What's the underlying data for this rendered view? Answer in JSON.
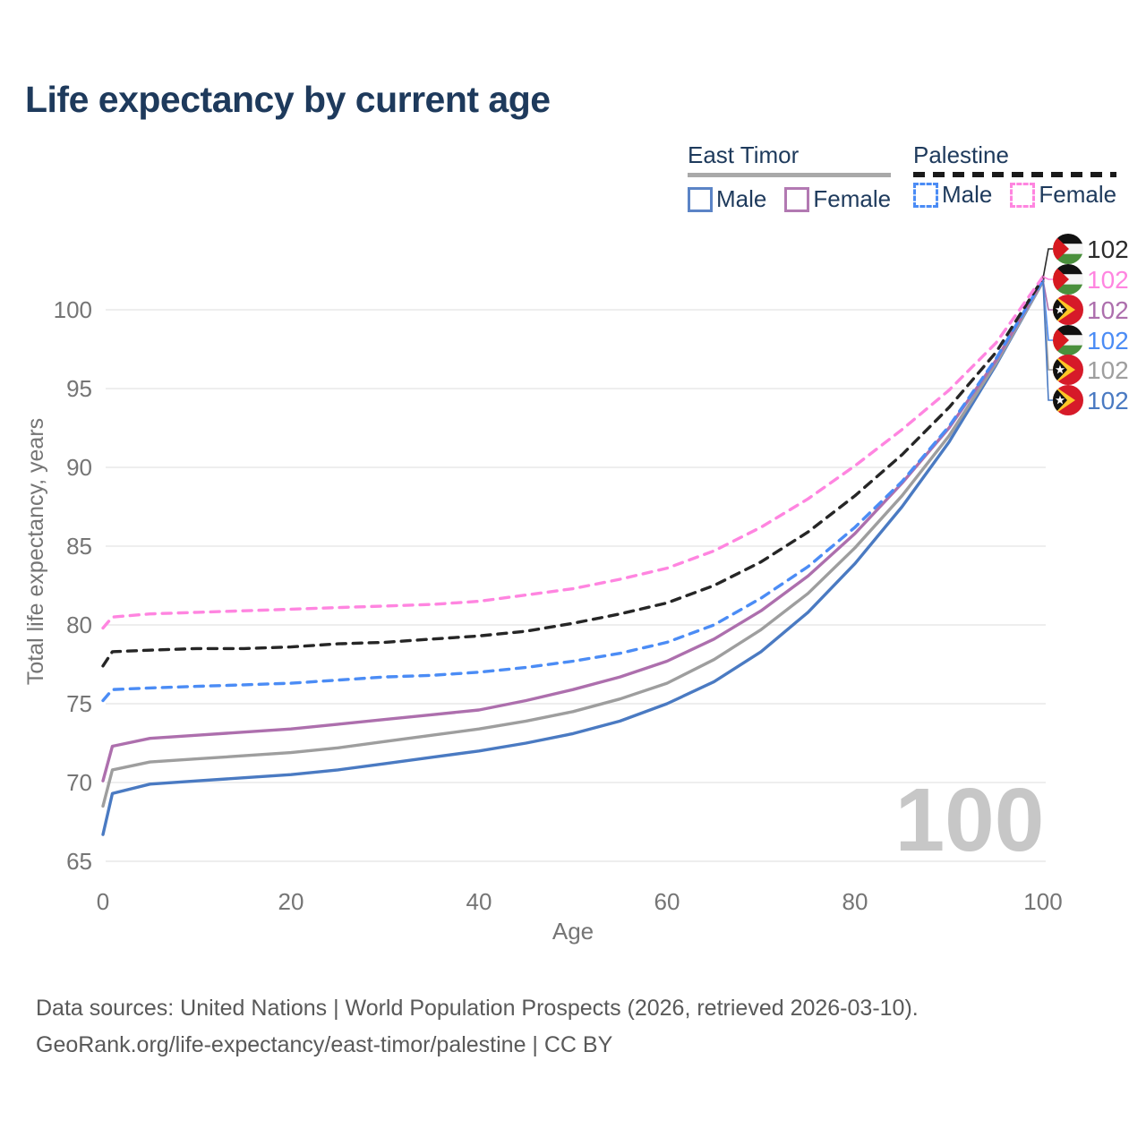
{
  "title": "Life expectancy by current age",
  "legend": {
    "groups": [
      {
        "title": "East Timor",
        "line_style": "solid",
        "items": [
          {
            "label": "Male",
            "color": "#4a7ac2"
          },
          {
            "label": "Female",
            "color": "#ad6fad"
          }
        ]
      },
      {
        "title": "Palestine",
        "line_style": "dashed",
        "items": [
          {
            "label": "Male",
            "color": "#4b8cf5"
          },
          {
            "label": "Female",
            "color": "#ff85e0"
          }
        ]
      }
    ]
  },
  "watermark": "100",
  "footer": {
    "line1": "Data sources: United Nations | World Population Prospects (2026, retrieved 2026-03-10).",
    "line2": "GeoRank.org/life-expectancy/east-timor/palestine | CC BY"
  },
  "chart_data": {
    "type": "line",
    "title": "Life expectancy by current age",
    "xlabel": "Age",
    "ylabel": "Total life expectancy, years",
    "xlim": [
      0,
      100
    ],
    "ylim": [
      65,
      102.5
    ],
    "xticks": [
      0,
      20,
      40,
      60,
      80,
      100
    ],
    "yticks": [
      65,
      70,
      75,
      80,
      85,
      90,
      95,
      100
    ],
    "grid": "horizontal-only",
    "legend_position": "top-right",
    "x": [
      0,
      1,
      5,
      10,
      15,
      20,
      25,
      30,
      35,
      40,
      45,
      50,
      55,
      60,
      65,
      70,
      75,
      80,
      85,
      90,
      95,
      100
    ],
    "series": [
      {
        "name": "East Timor Male",
        "country": "East Timor",
        "sex": "male",
        "color": "#4a7ac2",
        "dash": "solid",
        "values": [
          66.7,
          69.3,
          69.9,
          70.1,
          70.3,
          70.5,
          70.8,
          71.2,
          71.6,
          72.0,
          72.5,
          73.1,
          73.9,
          75.0,
          76.4,
          78.3,
          80.8,
          83.9,
          87.5,
          91.6,
          96.5,
          101.8
        ]
      },
      {
        "name": "East Timor",
        "country": "East Timor",
        "sex": "both",
        "color": "#9e9e9e",
        "dash": "solid",
        "values": [
          68.5,
          70.8,
          71.3,
          71.5,
          71.7,
          71.9,
          72.2,
          72.6,
          73.0,
          73.4,
          73.9,
          74.5,
          75.3,
          76.3,
          77.8,
          79.7,
          82.0,
          84.9,
          88.2,
          92.0,
          96.6,
          101.8
        ]
      },
      {
        "name": "East Timor Female",
        "country": "East Timor",
        "sex": "female",
        "color": "#ad6fad",
        "dash": "solid",
        "values": [
          70.1,
          72.3,
          72.8,
          73.0,
          73.2,
          73.4,
          73.7,
          74.0,
          74.3,
          74.6,
          75.2,
          75.9,
          76.7,
          77.7,
          79.1,
          80.9,
          83.1,
          85.8,
          89.0,
          92.5,
          96.8,
          101.9
        ]
      },
      {
        "name": "Palestine Male",
        "country": "Palestine",
        "sex": "male",
        "color": "#4b8cf5",
        "dash": "dashed",
        "values": [
          75.2,
          75.9,
          76.0,
          76.1,
          76.2,
          76.3,
          76.5,
          76.7,
          76.8,
          77.0,
          77.3,
          77.7,
          78.2,
          78.9,
          80.0,
          81.7,
          83.7,
          86.2,
          89.1,
          92.6,
          96.9,
          101.9
        ]
      },
      {
        "name": "Palestine",
        "country": "Palestine",
        "sex": "both",
        "color": "#262626",
        "dash": "dashed",
        "values": [
          77.4,
          78.3,
          78.4,
          78.5,
          78.5,
          78.6,
          78.8,
          78.9,
          79.1,
          79.3,
          79.6,
          80.1,
          80.7,
          81.4,
          82.5,
          84.0,
          85.9,
          88.2,
          90.8,
          93.8,
          97.3,
          102.0
        ]
      },
      {
        "name": "Palestine Female",
        "country": "Palestine",
        "sex": "female",
        "color": "#ff85e0",
        "dash": "dashed",
        "values": [
          79.8,
          80.5,
          80.7,
          80.8,
          80.9,
          81.0,
          81.1,
          81.2,
          81.3,
          81.5,
          81.9,
          82.3,
          82.9,
          83.6,
          84.7,
          86.2,
          88.0,
          90.1,
          92.4,
          94.9,
          97.9,
          102.1
        ]
      }
    ],
    "end_labels": [
      {
        "value": "102",
        "flag": "palestine",
        "series": "Palestine",
        "color": "#2b2b2b"
      },
      {
        "value": "102",
        "flag": "palestine",
        "series": "Palestine Female",
        "color": "#ff85e0"
      },
      {
        "value": "102",
        "flag": "east-timor",
        "series": "East Timor Female",
        "color": "#ad6fad"
      },
      {
        "value": "102",
        "flag": "palestine",
        "series": "Palestine Male",
        "color": "#4b8cf5"
      },
      {
        "value": "102",
        "flag": "east-timor",
        "series": "East Timor",
        "color": "#9e9e9e"
      },
      {
        "value": "102",
        "flag": "east-timor",
        "series": "East Timor Male",
        "color": "#4a7ac2"
      }
    ],
    "hover_age_indicator": "100"
  },
  "colors": {
    "title": "#1e3a5c",
    "axis_text": "#757575",
    "gridline": "#e8e8e8",
    "watermark": "#c7c7c7",
    "footer_text": "#595959"
  }
}
